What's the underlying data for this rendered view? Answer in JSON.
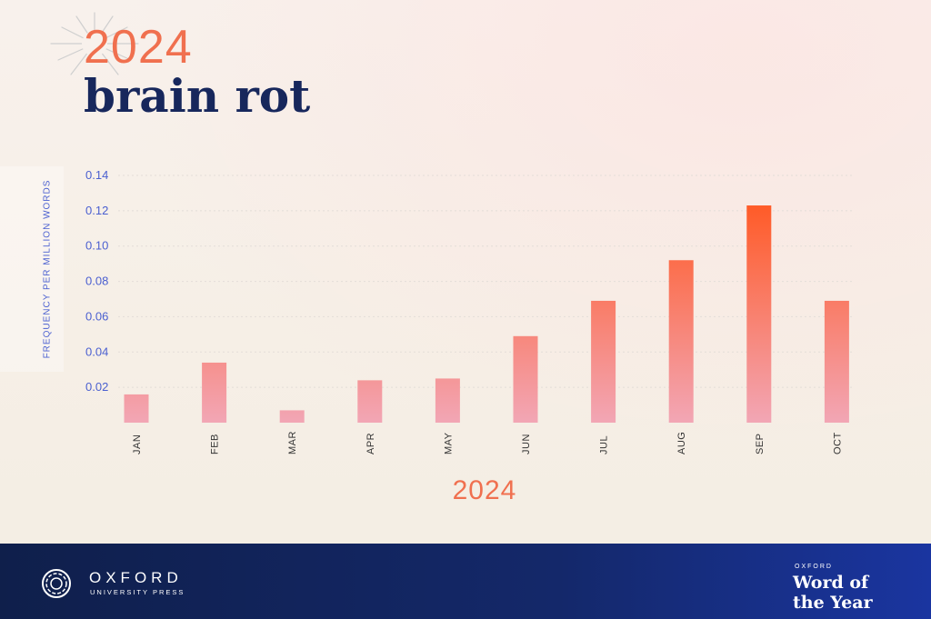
{
  "header": {
    "year": "2024",
    "word": "brain rot"
  },
  "chart_data": {
    "type": "bar",
    "title": "",
    "xlabel": "2024",
    "ylabel": "FREQUENCY PER MILLION WORDS",
    "categories": [
      "JAN",
      "FEB",
      "MAR",
      "APR",
      "MAY",
      "JUN",
      "JUL",
      "AUG",
      "SEP",
      "OCT"
    ],
    "values": [
      0.016,
      0.034,
      0.007,
      0.024,
      0.025,
      0.049,
      0.069,
      0.092,
      0.123,
      0.069
    ],
    "yticks": [
      "0.02",
      "0.04",
      "0.06",
      "0.08",
      "0.10",
      "0.12",
      "0.14"
    ],
    "ylim": [
      0,
      0.14
    ],
    "grid": true,
    "colors": {
      "bar_low": "#f2a6b5",
      "bar_high": "#ff5a26",
      "tick": "#4a5fd0",
      "grid": "#e3ddd8"
    }
  },
  "footer": {
    "publisher": "OXFORD",
    "publisher_sub": "UNIVERSITY PRESS",
    "woty_label": "OXFORD",
    "woty_line1": "Word of",
    "woty_line2": "the Year"
  }
}
